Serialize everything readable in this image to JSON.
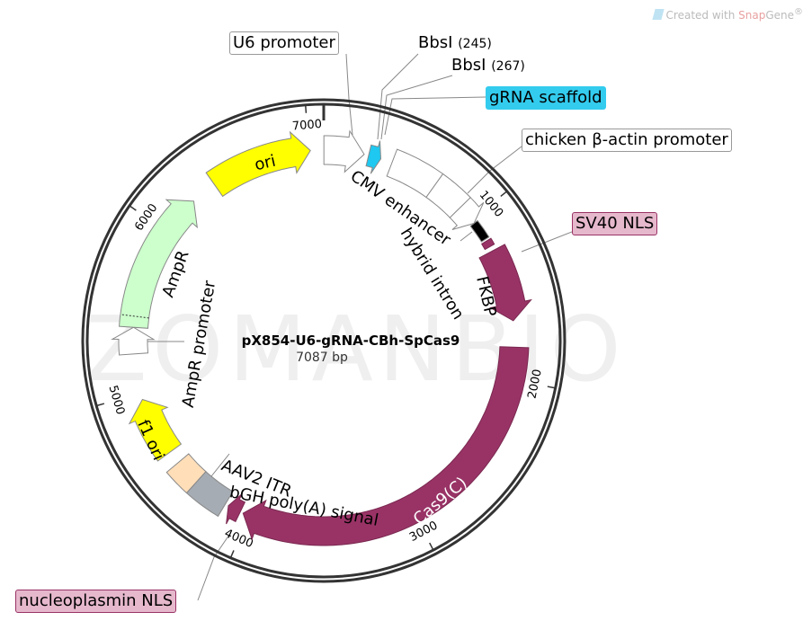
{
  "credit": {
    "prefix": "Created with ",
    "brand_a": "Snap",
    "brand_b": "Gene",
    "mark": "®"
  },
  "watermark": "ZOMANBIO",
  "plasmid": {
    "name": "pX854-U6-gRNA-CBh-SpCas9",
    "length_label": "7087 bp",
    "length": 7087
  },
  "ticks": [
    {
      "bp": 1000,
      "label": "1000"
    },
    {
      "bp": 2000,
      "label": "2000"
    },
    {
      "bp": 3000,
      "label": "3000"
    },
    {
      "bp": 4000,
      "label": "4000"
    },
    {
      "bp": 5000,
      "label": "5000"
    },
    {
      "bp": 6000,
      "label": "6000"
    },
    {
      "bp": 7000,
      "label": "7000"
    }
  ],
  "features": [
    {
      "name": "U6 promoter",
      "start": 1,
      "end": 241,
      "dir": 1,
      "color": "#ffffff"
    },
    {
      "name": "gRNA scaffold",
      "start": 268,
      "end": 343,
      "dir": 1,
      "color": "#1ec8f0"
    },
    {
      "name": "CMV enhancer",
      "start": 413,
      "end": 700,
      "dir": 0,
      "color": "#ffffff"
    },
    {
      "name": "chicken β-actin promoter",
      "start": 700,
      "end": 900,
      "dir": 0,
      "color": "#ffffff"
    },
    {
      "name": "hybrid intron",
      "start": 900,
      "end": 1024,
      "dir": 1,
      "color": "#ffffff"
    },
    {
      "name": "",
      "start": 1024,
      "end": 1140,
      "dir": 0,
      "color": "#000000"
    },
    {
      "name": "SV40 NLS",
      "start": 1152,
      "end": 1191,
      "dir": 0,
      "color": "#993366"
    },
    {
      "name": "FKBP",
      "start": 1220,
      "end": 1654,
      "dir": 1,
      "color": "#993366"
    },
    {
      "name": "Cas9(C)",
      "start": 1811,
      "end": 4036,
      "dir": 1,
      "color": "#993366"
    },
    {
      "name": "nucleoplasmin NLS",
      "start": 4055,
      "end": 4134,
      "dir": 1,
      "color": "#993366"
    },
    {
      "name": "bGH poly(A) signal",
      "start": 4154,
      "end": 4370,
      "dir": 0,
      "color": "#a6acb3"
    },
    {
      "name": "AAV2 ITR",
      "start": 4370,
      "end": 4528,
      "dir": 0,
      "color": "#ffdeb8"
    },
    {
      "name": "f1 ori",
      "start": 4607,
      "end": 4961,
      "dir": 1,
      "color": "#ffff00"
    },
    {
      "name": "AmpR promoter",
      "start": 5236,
      "end": 5394,
      "dir": 1,
      "color": "#ffffff"
    },
    {
      "name": "AmpR",
      "start": 5394,
      "end": 6241,
      "dir": 1,
      "color": "#ccffcc"
    },
    {
      "name": "ori",
      "start": 6398,
      "end": 7008,
      "dir": 1,
      "color": "#ffff00"
    }
  ],
  "sites": [
    {
      "name": "BbsI",
      "pos": "(245)"
    },
    {
      "name": "BbsI",
      "pos": "(267)"
    }
  ],
  "labels": {
    "u6": "U6 promoter",
    "grna": "gRNA scaffold",
    "cba": "chicken β-actin promoter",
    "sv40": "SV40 NLS",
    "npm": "nucleoplasmin NLS",
    "cmv": "CMV enhancer",
    "intron": "hybrid intron",
    "fkbp": "FKBP",
    "cas9": "Cas9(C)",
    "aav": "AAV2 ITR",
    "bgh": "bGH poly(A) signal",
    "f1": "f1 ori",
    "amppro": "AmpR promoter",
    "ampr": "AmpR",
    "ori": "ori"
  },
  "colors": {
    "grna_box": "#33ccee",
    "nls_box": "#e6b8cc",
    "nls_border": "#993366"
  }
}
